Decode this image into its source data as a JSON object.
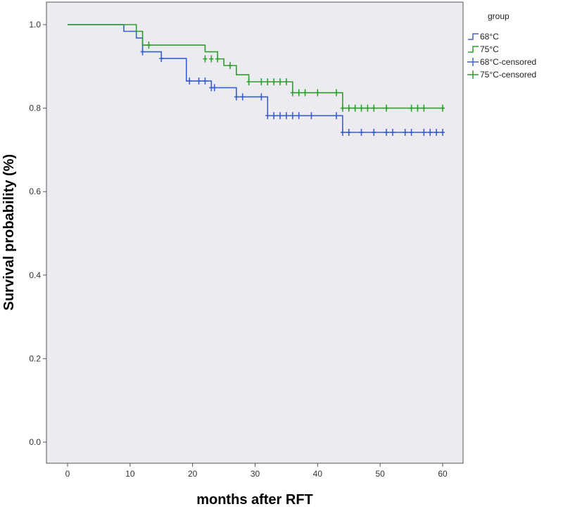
{
  "chart_data": {
    "type": "line",
    "subtype": "kaplan-meier step",
    "xlabel": "months after RFT",
    "ylabel": "Survival probability (%)",
    "xlim": [
      0,
      60
    ],
    "ylim": [
      0.0,
      1.0
    ],
    "xticks": [
      0,
      10,
      20,
      30,
      40,
      50,
      60
    ],
    "yticks": [
      0.0,
      0.2,
      0.4,
      0.6,
      0.8,
      1.0
    ],
    "ytick_labels": [
      "0.0",
      "0.2",
      "0.4",
      "0.6",
      "0.8",
      "1.0"
    ],
    "grid": false,
    "legend_position": "top-right outside",
    "legend_title": "group",
    "legend": [
      "68°C",
      "75°C",
      "68°C-censored",
      "75°C-censored"
    ],
    "colors": {
      "68°C": "#3a5fcd",
      "75°C": "#2e9e2e",
      "plot_bg": "#ececf0"
    },
    "series": [
      {
        "name": "68°C",
        "steps": [
          [
            0,
            1.0
          ],
          [
            9,
            0.984
          ],
          [
            11,
            0.968
          ],
          [
            12,
            0.935
          ],
          [
            15,
            0.919
          ],
          [
            19,
            0.865
          ],
          [
            23,
            0.849
          ],
          [
            27,
            0.827
          ],
          [
            32,
            0.782
          ],
          [
            44,
            0.742
          ]
        ],
        "end_x": 60,
        "censored": [
          [
            12,
            0.935
          ],
          [
            15,
            0.919
          ],
          [
            19.5,
            0.865
          ],
          [
            21,
            0.865
          ],
          [
            22,
            0.865
          ],
          [
            23,
            0.849
          ],
          [
            23.5,
            0.849
          ],
          [
            27,
            0.827
          ],
          [
            28,
            0.827
          ],
          [
            31,
            0.827
          ],
          [
            32,
            0.782
          ],
          [
            33,
            0.782
          ],
          [
            34,
            0.782
          ],
          [
            35,
            0.782
          ],
          [
            36,
            0.782
          ],
          [
            37,
            0.782
          ],
          [
            39,
            0.782
          ],
          [
            43,
            0.782
          ],
          [
            44,
            0.742
          ],
          [
            45,
            0.742
          ],
          [
            47,
            0.742
          ],
          [
            49,
            0.742
          ],
          [
            51,
            0.742
          ],
          [
            52,
            0.742
          ],
          [
            54,
            0.742
          ],
          [
            55,
            0.742
          ],
          [
            57,
            0.742
          ],
          [
            58,
            0.742
          ],
          [
            59,
            0.742
          ],
          [
            60,
            0.742
          ]
        ]
      },
      {
        "name": "75°C",
        "steps": [
          [
            0,
            1.0
          ],
          [
            11,
            0.984
          ],
          [
            12,
            0.951
          ],
          [
            22,
            0.935
          ],
          [
            24,
            0.918
          ],
          [
            25,
            0.902
          ],
          [
            27,
            0.88
          ],
          [
            29,
            0.863
          ],
          [
            36,
            0.837
          ],
          [
            44,
            0.8
          ]
        ],
        "end_x": 60,
        "censored": [
          [
            13,
            0.951
          ],
          [
            22,
            0.918
          ],
          [
            23,
            0.918
          ],
          [
            24,
            0.918
          ],
          [
            26,
            0.902
          ],
          [
            29,
            0.863
          ],
          [
            31,
            0.863
          ],
          [
            32,
            0.863
          ],
          [
            33,
            0.863
          ],
          [
            34,
            0.863
          ],
          [
            35,
            0.863
          ],
          [
            36,
            0.837
          ],
          [
            37,
            0.837
          ],
          [
            38,
            0.837
          ],
          [
            40,
            0.837
          ],
          [
            43,
            0.837
          ],
          [
            44,
            0.8
          ],
          [
            45,
            0.8
          ],
          [
            46,
            0.8
          ],
          [
            47,
            0.8
          ],
          [
            48,
            0.8
          ],
          [
            49,
            0.8
          ],
          [
            51,
            0.8
          ],
          [
            55,
            0.8
          ],
          [
            56,
            0.8
          ],
          [
            57,
            0.8
          ],
          [
            60,
            0.8
          ]
        ]
      }
    ]
  }
}
